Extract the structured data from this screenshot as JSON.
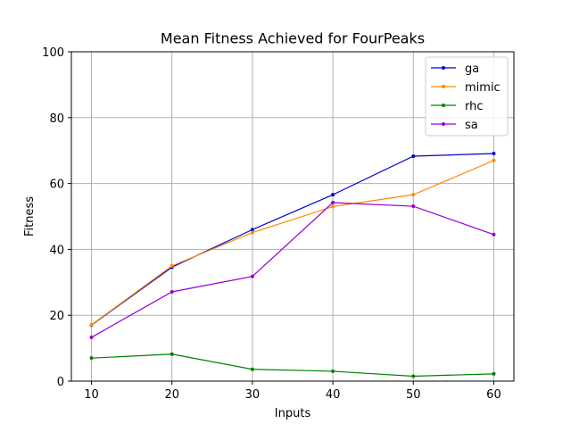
{
  "chart_data": {
    "type": "line",
    "title": "Mean Fitness Achieved for FourPeaks",
    "xlabel": "Inputs",
    "ylabel": "Fitness",
    "x": [
      10,
      20,
      30,
      40,
      50,
      60
    ],
    "xticks": [
      "10",
      "20",
      "30",
      "40",
      "50",
      "60"
    ],
    "yticks": [
      "0",
      "20",
      "40",
      "60",
      "80",
      "100"
    ],
    "xlim": [
      7.5,
      62.5
    ],
    "ylim": [
      0,
      100
    ],
    "grid": true,
    "legend_position": "top-right",
    "series": [
      {
        "name": "ga",
        "color": "#0000cc",
        "values": [
          17.0,
          34.6,
          46.0,
          56.6,
          68.3,
          69.1
        ]
      },
      {
        "name": "mimic",
        "color": "#ff8c00",
        "values": [
          17.1,
          35.0,
          45.1,
          53.0,
          56.6,
          67.0
        ]
      },
      {
        "name": "rhc",
        "color": "#008000",
        "values": [
          7.0,
          8.2,
          3.6,
          3.0,
          1.5,
          2.2
        ]
      },
      {
        "name": "sa",
        "color": "#9400d3",
        "values": [
          13.3,
          27.1,
          31.8,
          54.2,
          53.1,
          44.5
        ]
      }
    ]
  }
}
